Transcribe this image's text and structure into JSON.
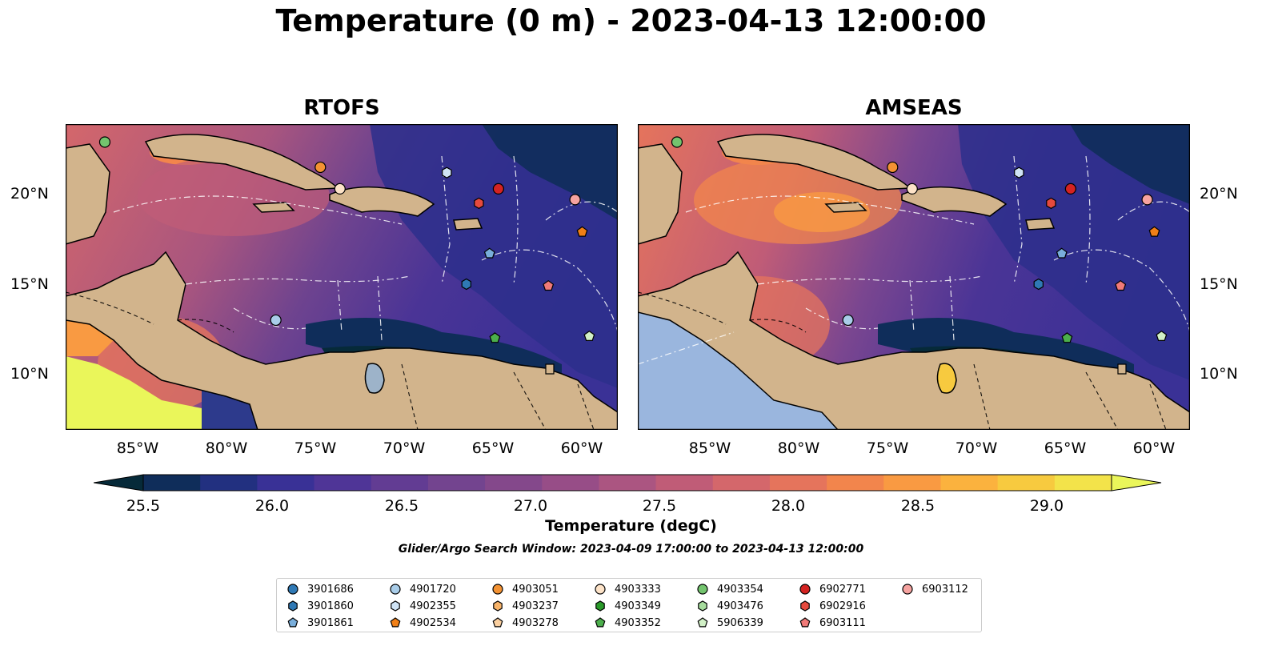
{
  "title": "Temperature (0 m) - 2023-04-13 12:00:00",
  "panels": [
    {
      "title": "RTOFS"
    },
    {
      "title": "AMSEAS"
    }
  ],
  "lat_labels": [
    "20°N",
    "15°N",
    "10°N"
  ],
  "lon_labels": [
    "85°W",
    "80°W",
    "75°W",
    "70°W",
    "65°W",
    "60°W"
  ],
  "map_extent": {
    "lon": [
      -89,
      -58
    ],
    "lat": [
      7,
      24
    ]
  },
  "colorbar": {
    "label": "Temperature (degC)",
    "ticks": [
      "25.5",
      "26.0",
      "26.5",
      "27.0",
      "27.5",
      "28.0",
      "28.5",
      "29.0"
    ],
    "range": [
      25.25,
      29.25
    ],
    "extend": "both",
    "colormap": [
      "#062a39",
      "#0f2d5a",
      "#223080",
      "#393196",
      "#4f3597",
      "#623c93",
      "#73448f",
      "#84488b",
      "#974d87",
      "#ab5581",
      "#c05c77",
      "#d4676b",
      "#e5745c",
      "#f2854c",
      "#f99a42",
      "#fbb23e",
      "#f7ca3f",
      "#f3e34a",
      "#eaf65a"
    ]
  },
  "search_window": "Glider/Argo Search Window: 2023-04-09 17:00:00 to 2023-04-13 12:00:00",
  "colors": {
    "land": "#d2b48c",
    "lake": "#9db3c9",
    "pacific_amseas": "#9ab6de"
  },
  "floats": [
    {
      "id": "3901686",
      "marker": "circle",
      "color": "#2f79b5"
    },
    {
      "id": "3901860",
      "marker": "hexagon",
      "color": "#2f79b5"
    },
    {
      "id": "3901861",
      "marker": "pentagon",
      "color": "#79aedb"
    },
    {
      "id": "4901720",
      "marker": "circle",
      "color": "#a9cde9"
    },
    {
      "id": "4902355",
      "marker": "hexagon",
      "color": "#cfe3f5"
    },
    {
      "id": "4902534",
      "marker": "pentagon",
      "color": "#f07f16"
    },
    {
      "id": "4903051",
      "marker": "circle",
      "color": "#f39233"
    },
    {
      "id": "4903237",
      "marker": "hexagon",
      "color": "#f8b46a"
    },
    {
      "id": "4903278",
      "marker": "pentagon",
      "color": "#fbd0a0"
    },
    {
      "id": "4903333",
      "marker": "circle",
      "color": "#fde3c8"
    },
    {
      "id": "4903349",
      "marker": "hexagon",
      "color": "#2a9a2a"
    },
    {
      "id": "4903352",
      "marker": "pentagon",
      "color": "#4caf4c"
    },
    {
      "id": "4903354",
      "marker": "circle",
      "color": "#73c46e"
    },
    {
      "id": "4903476",
      "marker": "hexagon",
      "color": "#a6dc9d"
    },
    {
      "id": "5906339",
      "marker": "pentagon",
      "color": "#d1f0c6"
    },
    {
      "id": "6902771",
      "marker": "circle",
      "color": "#d42322"
    },
    {
      "id": "6902916",
      "marker": "hexagon",
      "color": "#e64a3e"
    },
    {
      "id": "6903111",
      "marker": "pentagon",
      "color": "#f07a78"
    },
    {
      "id": "6903112",
      "marker": "circle",
      "color": "#f6a3a0"
    }
  ],
  "float_positions": [
    {
      "id": "4903354",
      "lon": -86.8,
      "lat": 23.0
    },
    {
      "id": "4903051",
      "lon": -74.7,
      "lat": 21.6
    },
    {
      "id": "4903333",
      "lon": -73.6,
      "lat": 20.4
    },
    {
      "id": "4902355",
      "lon": -67.6,
      "lat": 21.3
    },
    {
      "id": "6902771",
      "lon": -64.7,
      "lat": 20.4
    },
    {
      "id": "6902916",
      "lon": -65.8,
      "lat": 19.6
    },
    {
      "id": "6903112",
      "lon": -60.4,
      "lat": 19.8
    },
    {
      "id": "4902534",
      "lon": -60.0,
      "lat": 18.0
    },
    {
      "id": "3901861",
      "lon": -65.2,
      "lat": 16.8
    },
    {
      "id": "3901860",
      "lon": -66.5,
      "lat": 15.1
    },
    {
      "id": "6903111",
      "lon": -61.9,
      "lat": 15.0
    },
    {
      "id": "4901720",
      "lon": -77.2,
      "lat": 13.1
    },
    {
      "id": "4903352",
      "lon": -64.9,
      "lat": 12.1
    },
    {
      "id": "5906339",
      "lon": -59.6,
      "lat": 12.2
    }
  ]
}
